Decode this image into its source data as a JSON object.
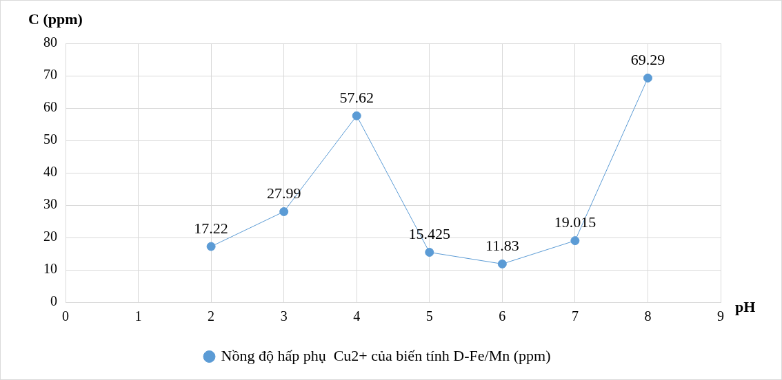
{
  "chart_data": {
    "type": "line",
    "ylabel": "C (ppm)",
    "xlabel": "pH",
    "x": [
      2,
      3,
      4,
      5,
      6,
      7,
      8
    ],
    "series": [
      {
        "name": "Nồng độ hấp phụ  Cu2+ của biến tính D-Fe/Mn (ppm)",
        "color": "#5b9bd5",
        "values": [
          17.22,
          27.99,
          57.62,
          15.425,
          11.83,
          19.015,
          69.29
        ]
      }
    ],
    "xlim": [
      0,
      9
    ],
    "xticks": [
      0,
      1,
      2,
      3,
      4,
      5,
      6,
      7,
      8,
      9
    ],
    "ylim": [
      0,
      80
    ],
    "yticks": [
      0,
      10,
      20,
      30,
      40,
      50,
      60,
      70,
      80
    ],
    "grid": true,
    "legend": "bottom",
    "marker": "circle",
    "line_style": "solid",
    "data_labels": true
  }
}
